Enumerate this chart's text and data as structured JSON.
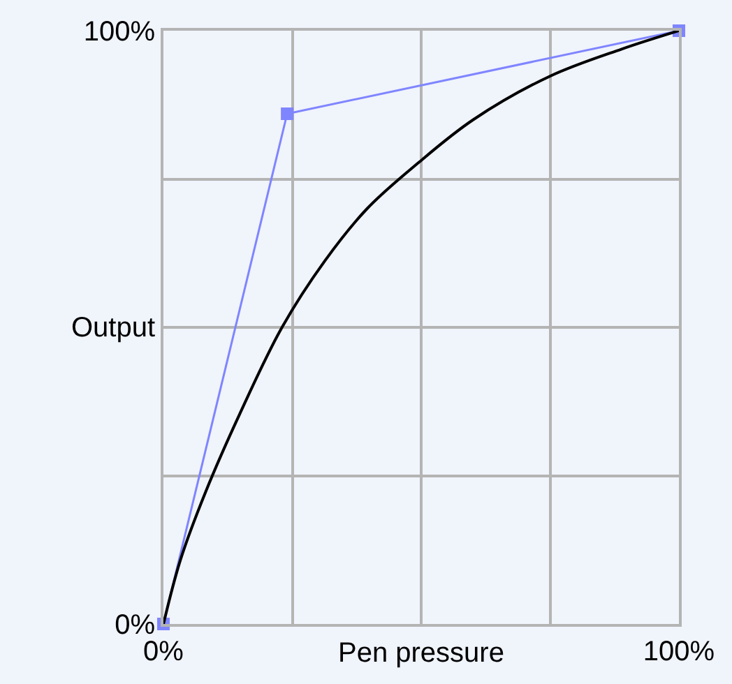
{
  "chart_data": {
    "type": "line",
    "xlabel": "Pen pressure",
    "ylabel": "Output",
    "xlim": [
      0,
      100
    ],
    "ylim": [
      0,
      100
    ],
    "xticks": [
      {
        "value": 0,
        "label": "0%"
      },
      {
        "value": 25,
        "label": null
      },
      {
        "value": 50,
        "label": null
      },
      {
        "value": 75,
        "label": null
      },
      {
        "value": 100,
        "label": "100%"
      }
    ],
    "yticks": [
      {
        "value": 0,
        "label": "0%"
      },
      {
        "value": 25,
        "label": null
      },
      {
        "value": 50,
        "label": null
      },
      {
        "value": 75,
        "label": null
      },
      {
        "value": 100,
        "label": "100%"
      }
    ],
    "grid": true,
    "series": [
      {
        "color": "#7f85ff",
        "marker": "square",
        "x": [
          0,
          24,
          100
        ],
        "values": [
          0,
          86,
          100
        ]
      },
      {
        "color": "#000000",
        "marker": "none",
        "x": [
          0,
          3.3,
          8.2,
          14.8,
          23.0,
          31.3,
          39.5,
          49.4,
          60.1,
          74.9,
          88.9,
          100
        ],
        "values": [
          0,
          10.8,
          22.3,
          35.4,
          50.0,
          61.2,
          70.0,
          77.7,
          85.0,
          92.3,
          96.9,
          100
        ]
      }
    ]
  }
}
